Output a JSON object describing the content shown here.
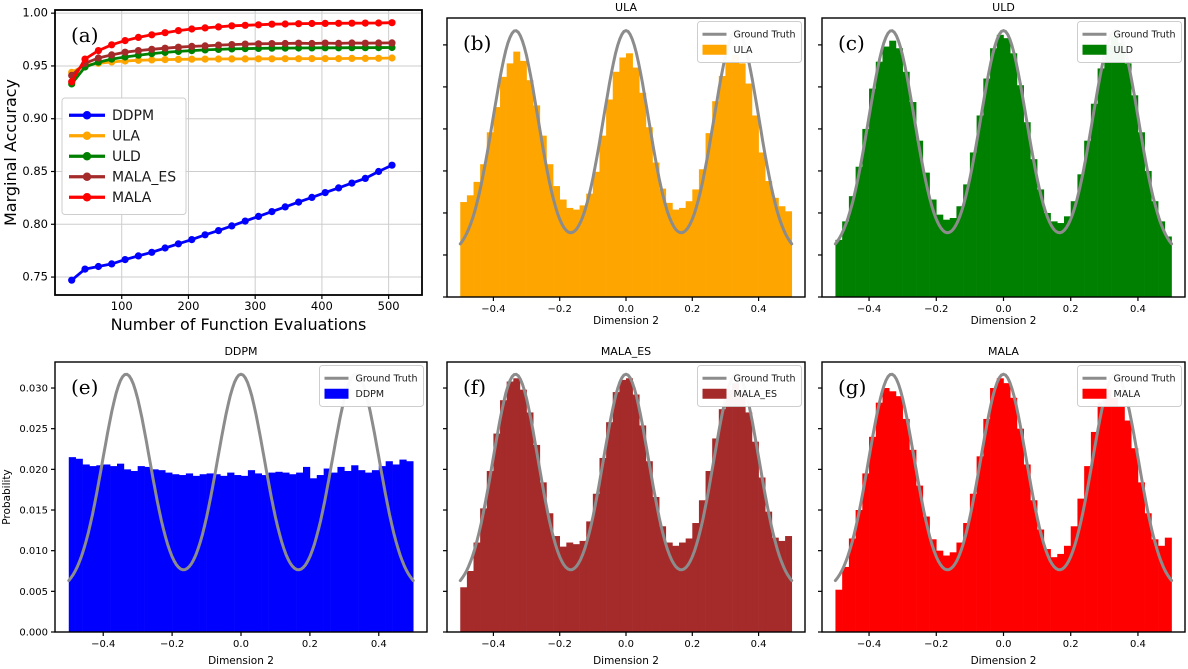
{
  "figure": {
    "description": "Comparison of sampling methods: marginal accuracy vs number of function evaluations, and marginal histograms vs ground truth",
    "background": "#ffffff",
    "ground_truth_color": "#8c8c8c"
  },
  "chart_data": [
    {
      "id": "a",
      "type": "line",
      "panel_label": "(a)",
      "title": "",
      "xlabel": "Number of Function Evaluations",
      "ylabel": "Marginal Accuracy",
      "xlim": [
        0,
        550
      ],
      "ylim": [
        0.733,
        1.003
      ],
      "grid": true,
      "legend_position": "center-left",
      "xticks": [
        100,
        200,
        300,
        400,
        500
      ],
      "xtick_labels": [
        "100",
        "200",
        "300",
        "400",
        "500"
      ],
      "yticks": [
        0.75,
        0.8,
        0.85,
        0.9,
        0.95,
        1.0
      ],
      "ytick_labels": [
        "0.75",
        "0.80",
        "0.85",
        "0.90",
        "0.95",
        "1.00"
      ],
      "x": [
        25,
        45,
        65,
        85,
        105,
        125,
        145,
        165,
        185,
        205,
        225,
        245,
        265,
        285,
        305,
        325,
        345,
        365,
        385,
        405,
        425,
        445,
        465,
        485,
        505
      ],
      "series": [
        {
          "name": "DDPM",
          "color": "#0000ff",
          "values": [
            0.747,
            0.7575,
            0.76,
            0.7625,
            0.7665,
            0.77,
            0.7735,
            0.7775,
            0.7815,
            0.7855,
            0.79,
            0.794,
            0.7985,
            0.803,
            0.8075,
            0.812,
            0.8165,
            0.821,
            0.8255,
            0.83,
            0.8345,
            0.839,
            0.8435,
            0.85,
            0.856
          ]
        },
        {
          "name": "ULA",
          "color": "#ffa500",
          "values": [
            0.944,
            0.9505,
            0.9525,
            0.9538,
            0.9547,
            0.9553,
            0.9557,
            0.956,
            0.9562,
            0.9564,
            0.9565,
            0.9566,
            0.9567,
            0.9567,
            0.9568,
            0.9568,
            0.9569,
            0.9569,
            0.957,
            0.957,
            0.957,
            0.9571,
            0.9571,
            0.9572,
            0.9575
          ]
        },
        {
          "name": "ULD",
          "color": "#008000",
          "values": [
            0.933,
            0.949,
            0.9535,
            0.9565,
            0.9585,
            0.9602,
            0.9617,
            0.9628,
            0.9638,
            0.9645,
            0.9652,
            0.9657,
            0.9661,
            0.9664,
            0.9666,
            0.9668,
            0.9669,
            0.967,
            0.9671,
            0.9672,
            0.9672,
            0.9673,
            0.9673,
            0.9674,
            0.9675
          ]
        },
        {
          "name": "MALA_ES",
          "color": "#a52a2a",
          "values": [
            0.941,
            0.9525,
            0.9575,
            0.9605,
            0.963,
            0.9645,
            0.9658,
            0.9668,
            0.9678,
            0.9685,
            0.969,
            0.9697,
            0.9702,
            0.9707,
            0.971,
            0.9712,
            0.9713,
            0.9715,
            0.9713,
            0.9716,
            0.9714,
            0.9717,
            0.9715,
            0.9717,
            0.9718
          ]
        },
        {
          "name": "MALA",
          "color": "#ff0000",
          "values": [
            0.935,
            0.9565,
            0.9645,
            0.97,
            0.974,
            0.977,
            0.9795,
            0.9815,
            0.9835,
            0.985,
            0.986,
            0.987,
            0.988,
            0.9885,
            0.989,
            0.9895,
            0.9897,
            0.99,
            0.9902,
            0.9903,
            0.9904,
            0.9905,
            0.9906,
            0.9907,
            0.991
          ]
        }
      ]
    },
    {
      "id": "b",
      "type": "histogram",
      "panel_label": "(b)",
      "title": "ULA",
      "xlabel": "Dimension 2",
      "ylabel": "",
      "xlim": [
        -0.54,
        0.54
      ],
      "ylim": [
        0,
        0.0332
      ],
      "grid": false,
      "legend_position": "upper-right",
      "xticks": [
        -0.4,
        -0.2,
        0.0,
        0.2,
        0.4
      ],
      "xtick_labels": [
        "−0.4",
        "−0.2",
        "0.0",
        "0.2",
        "0.4"
      ],
      "yticks": [
        0,
        0.005,
        0.01,
        0.015,
        0.02,
        0.025,
        0.03
      ],
      "ytick_labels": null,
      "bar_color": "#ffa500",
      "bin_start": -0.5,
      "bin_width": 0.02,
      "heights": [
        0.0113,
        0.0121,
        0.0137,
        0.0158,
        0.0196,
        0.0226,
        0.0262,
        0.0278,
        0.0292,
        0.0281,
        0.0258,
        0.0228,
        0.0192,
        0.0158,
        0.0132,
        0.0116,
        0.0106,
        0.0104,
        0.0109,
        0.0123,
        0.0149,
        0.0192,
        0.0235,
        0.0268,
        0.0285,
        0.029,
        0.0273,
        0.0243,
        0.0202,
        0.016,
        0.0129,
        0.0112,
        0.0104,
        0.0106,
        0.0114,
        0.0128,
        0.0152,
        0.0195,
        0.0233,
        0.0263,
        0.0282,
        0.0288,
        0.0278,
        0.0254,
        0.0216,
        0.0172,
        0.0138,
        0.0118,
        0.0108,
        0.0102
      ],
      "curve": {
        "name": "Ground Truth",
        "color": "#8c8c8c",
        "range": [
          -0.5,
          0.5
        ],
        "peaks": [
          -0.3333,
          0,
          0.3333
        ],
        "sigma": 0.068,
        "amplitude": 0.0267,
        "baseline": 0.005,
        "peak_value": 0.0317,
        "valley_value": 0.0078
      }
    },
    {
      "id": "c",
      "type": "histogram",
      "panel_label": "(c)",
      "title": "ULD",
      "xlabel": "Dimension 2",
      "ylabel": "",
      "xlim": [
        -0.54,
        0.54
      ],
      "ylim": [
        0,
        0.0332
      ],
      "grid": false,
      "legend_position": "upper-right",
      "xticks": [
        -0.4,
        -0.2,
        0.0,
        0.2,
        0.4
      ],
      "xtick_labels": [
        "−0.4",
        "−0.2",
        "0.0",
        "0.2",
        "0.4"
      ],
      "yticks": [
        0,
        0.005,
        0.01,
        0.015,
        0.02,
        0.025,
        0.03
      ],
      "ytick_labels": null,
      "bar_color": "#008000",
      "bin_start": -0.5,
      "bin_width": 0.02,
      "heights": [
        0.0068,
        0.009,
        0.012,
        0.0155,
        0.02,
        0.0248,
        0.028,
        0.0298,
        0.0305,
        0.0296,
        0.0268,
        0.0232,
        0.0186,
        0.0148,
        0.0116,
        0.0098,
        0.0092,
        0.0094,
        0.0108,
        0.0134,
        0.0172,
        0.0216,
        0.026,
        0.0296,
        0.0312,
        0.0308,
        0.029,
        0.0252,
        0.0208,
        0.0164,
        0.0128,
        0.01,
        0.009,
        0.0088,
        0.0096,
        0.0114,
        0.0146,
        0.0186,
        0.023,
        0.0272,
        0.03,
        0.031,
        0.0302,
        0.0278,
        0.024,
        0.0196,
        0.015,
        0.0114,
        0.009,
        0.0072
      ],
      "curve": {
        "name": "Ground Truth",
        "color": "#8c8c8c",
        "range": [
          -0.5,
          0.5
        ],
        "peaks": [
          -0.3333,
          0,
          0.3333
        ],
        "sigma": 0.068,
        "amplitude": 0.0267,
        "baseline": 0.005,
        "peak_value": 0.0317,
        "valley_value": 0.0078
      }
    },
    {
      "id": "e",
      "type": "histogram",
      "panel_label": "(e)",
      "title": "DDPM",
      "xlabel": "Dimension 2",
      "ylabel": "Probability",
      "xlim": [
        -0.54,
        0.54
      ],
      "ylim": [
        0,
        0.0332
      ],
      "grid": false,
      "legend_position": "upper-right",
      "xticks": [
        -0.4,
        -0.2,
        0.0,
        0.2,
        0.4
      ],
      "xtick_labels": [
        "−0.4",
        "−0.2",
        "0.0",
        "0.2",
        "0.4"
      ],
      "yticks": [
        0,
        0.005,
        0.01,
        0.015,
        0.02,
        0.025,
        0.03
      ],
      "ytick_labels": [
        "0.000",
        "0.005",
        "0.010",
        "0.015",
        "0.020",
        "0.025",
        "0.030"
      ],
      "bar_color": "#0000ff",
      "bin_start": -0.5,
      "bin_width": 0.02,
      "heights": [
        0.0215,
        0.0213,
        0.0206,
        0.0204,
        0.0205,
        0.0206,
        0.0204,
        0.0207,
        0.02,
        0.0198,
        0.0204,
        0.0203,
        0.02,
        0.0199,
        0.0196,
        0.0194,
        0.0193,
        0.0195,
        0.0192,
        0.0194,
        0.0195,
        0.0194,
        0.0192,
        0.0196,
        0.0193,
        0.0192,
        0.0199,
        0.0195,
        0.0193,
        0.0196,
        0.0197,
        0.0196,
        0.0194,
        0.0196,
        0.0203,
        0.0189,
        0.0193,
        0.0201,
        0.0196,
        0.0203,
        0.0198,
        0.0205,
        0.0199,
        0.0196,
        0.0199,
        0.0204,
        0.021,
        0.0206,
        0.0212,
        0.021
      ],
      "curve": {
        "name": "Ground Truth",
        "color": "#8c8c8c",
        "range": [
          -0.5,
          0.5
        ],
        "peaks": [
          -0.3333,
          0,
          0.3333
        ],
        "sigma": 0.068,
        "amplitude": 0.0267,
        "baseline": 0.005,
        "peak_value": 0.0317,
        "valley_value": 0.0078
      }
    },
    {
      "id": "f",
      "type": "histogram",
      "panel_label": "(f)",
      "title": "MALA_ES",
      "xlabel": "Dimension 2",
      "ylabel": "",
      "xlim": [
        -0.54,
        0.54
      ],
      "ylim": [
        0,
        0.0332
      ],
      "grid": false,
      "legend_position": "upper-right",
      "xticks": [
        -0.4,
        -0.2,
        0.0,
        0.2,
        0.4
      ],
      "xtick_labels": [
        "−0.4",
        "−0.2",
        "0.0",
        "0.2",
        "0.4"
      ],
      "yticks": [
        0,
        0.005,
        0.01,
        0.015,
        0.02,
        0.025,
        0.03
      ],
      "ytick_labels": null,
      "bar_color": "#a52a2a",
      "bin_start": -0.5,
      "bin_width": 0.02,
      "heights": [
        0.0055,
        0.0075,
        0.011,
        0.0152,
        0.0198,
        0.0244,
        0.0285,
        0.0308,
        0.0312,
        0.0298,
        0.027,
        0.023,
        0.0184,
        0.0146,
        0.0118,
        0.0105,
        0.011,
        0.0108,
        0.0112,
        0.0136,
        0.017,
        0.0214,
        0.0258,
        0.0295,
        0.031,
        0.0312,
        0.0292,
        0.0254,
        0.021,
        0.0166,
        0.013,
        0.011,
        0.0106,
        0.011,
        0.0115,
        0.0134,
        0.0162,
        0.0198,
        0.0238,
        0.0274,
        0.0298,
        0.0306,
        0.0296,
        0.027,
        0.0234,
        0.019,
        0.0148,
        0.0116,
        0.0112,
        0.0118
      ],
      "curve": {
        "name": "Ground Truth",
        "color": "#8c8c8c",
        "range": [
          -0.5,
          0.5
        ],
        "peaks": [
          -0.3333,
          0,
          0.3333
        ],
        "sigma": 0.068,
        "amplitude": 0.0267,
        "baseline": 0.005,
        "peak_value": 0.0317,
        "valley_value": 0.0078
      }
    },
    {
      "id": "g",
      "type": "histogram",
      "panel_label": "(g)",
      "title": "MALA",
      "xlabel": "Dimension 2",
      "ylabel": "",
      "xlim": [
        -0.54,
        0.54
      ],
      "ylim": [
        0,
        0.0332
      ],
      "grid": false,
      "legend_position": "upper-right",
      "xticks": [
        -0.4,
        -0.2,
        0.0,
        0.2,
        0.4
      ],
      "xtick_labels": [
        "−0.4",
        "−0.2",
        "0.0",
        "0.2",
        "0.4"
      ],
      "yticks": [
        0,
        0.005,
        0.01,
        0.015,
        0.02,
        0.025,
        0.03
      ],
      "ytick_labels": null,
      "bar_color": "#ff0000",
      "bin_start": -0.5,
      "bin_width": 0.02,
      "heights": [
        0.0052,
        0.008,
        0.0115,
        0.015,
        0.0195,
        0.024,
        0.0282,
        0.03,
        0.0296,
        0.029,
        0.0262,
        0.0224,
        0.018,
        0.0142,
        0.0114,
        0.01,
        0.0094,
        0.0098,
        0.011,
        0.0134,
        0.017,
        0.0216,
        0.0262,
        0.03,
        0.0312,
        0.0306,
        0.0288,
        0.025,
        0.0206,
        0.0162,
        0.0126,
        0.0102,
        0.0092,
        0.0096,
        0.0106,
        0.013,
        0.0164,
        0.0204,
        0.0246,
        0.0282,
        0.0298,
        0.0288,
        0.0278,
        0.026,
        0.0226,
        0.0184,
        0.0146,
        0.0114,
        0.0106,
        0.0116
      ],
      "curve": {
        "name": "Ground Truth",
        "color": "#8c8c8c",
        "range": [
          -0.5,
          0.5
        ],
        "peaks": [
          -0.3333,
          0,
          0.3333
        ],
        "sigma": 0.068,
        "amplitude": 0.0267,
        "baseline": 0.005,
        "peak_value": 0.0317,
        "valley_value": 0.0078
      }
    }
  ]
}
